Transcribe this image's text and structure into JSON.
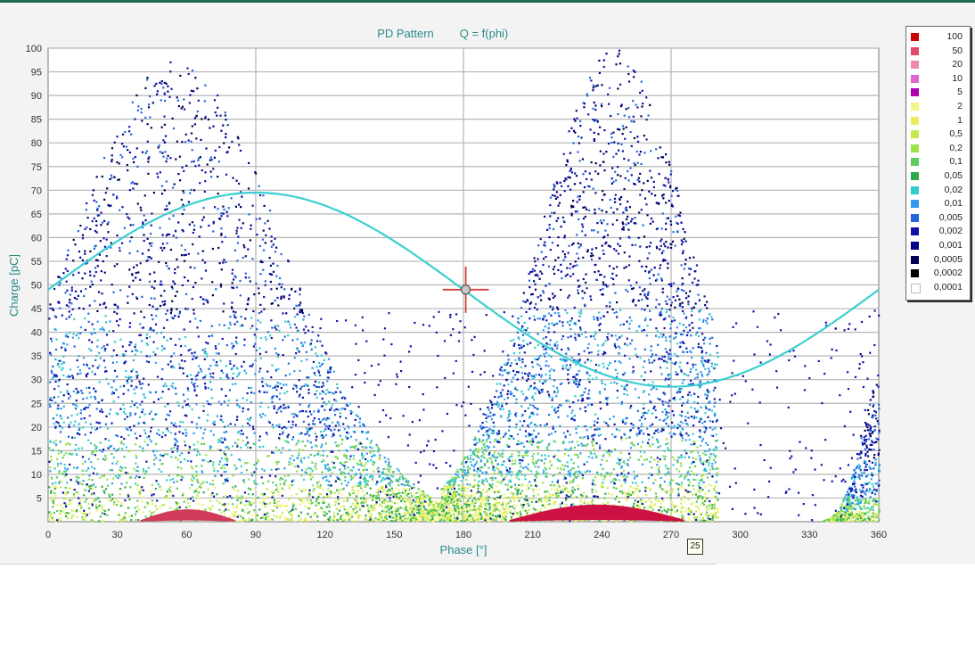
{
  "chart_data": {
    "type": "scatter",
    "title": "PD Pattern",
    "subtitle": "Q = f(phi)",
    "xlabel": "Phase [°]",
    "ylabel": "Charge [pC]",
    "xlim": [
      0,
      360
    ],
    "ylim": [
      0,
      100
    ],
    "x_ticks": [
      "0",
      "30",
      "60",
      "90",
      "120",
      "150",
      "180",
      "210",
      "240",
      "270",
      "300",
      "330",
      "360"
    ],
    "y_ticks": [
      "5",
      "10",
      "15",
      "20",
      "25",
      "30",
      "35",
      "40",
      "45",
      "50",
      "55",
      "60",
      "65",
      "70",
      "75",
      "80",
      "85",
      "90",
      "95",
      "100"
    ],
    "grid": true,
    "reference_sine": {
      "offset": 49,
      "amplitude": 20.5,
      "color": "#3ccfd0"
    },
    "cursor": {
      "x": 181,
      "y": 49,
      "color": "#d94040"
    },
    "marker_label": "25",
    "clusters": [
      {
        "name": "positive half-cycle",
        "x_range": [
          0,
          170
        ],
        "peak_x": 55,
        "max_charge": 98
      },
      {
        "name": "negative half-cycle",
        "x_range": [
          170,
          290
        ],
        "peak_x": 245,
        "max_charge": 100
      },
      {
        "name": "tail",
        "x_range": [
          330,
          360
        ],
        "peak_x": 360,
        "max_charge": 30
      }
    ],
    "density_scale": {
      "labels": [
        "100",
        "50",
        "20",
        "10",
        "5",
        "2",
        "1",
        "0,5",
        "0,2",
        "0,1",
        "0,05",
        "0,02",
        "0,01",
        "0,005",
        "0,002",
        "0,001",
        "0,0005",
        "0,0002",
        "0,0001"
      ],
      "colors": [
        "#cc0000",
        "#e04a6a",
        "#e88aa8",
        "#dd66cc",
        "#b000b0",
        "#f5f585",
        "#e8f060",
        "#c8e850",
        "#9ee04a",
        "#5ccc5c",
        "#2eaa4a",
        "#33cccc",
        "#3399ee",
        "#2266dd",
        "#1111aa",
        "#000088",
        "#000055",
        "#000000",
        "#ffffff"
      ]
    }
  }
}
